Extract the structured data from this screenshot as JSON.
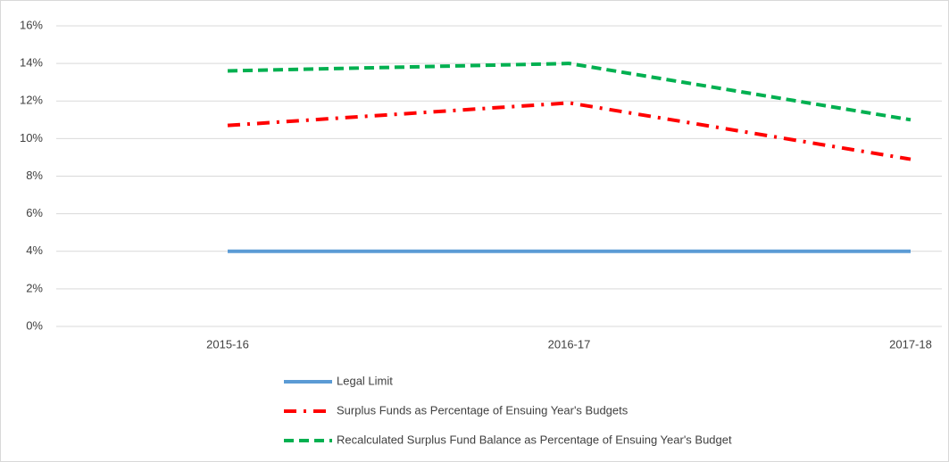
{
  "chart_data": {
    "type": "line",
    "categories": [
      "2015-16",
      "2016-17",
      "2017-18"
    ],
    "series": [
      {
        "name": "Legal Limit",
        "color": "#5b9bd5",
        "dash": "solid",
        "values": [
          4,
          4,
          4
        ]
      },
      {
        "name": "Surplus Funds as Percentage of Ensuing Year's Budgets",
        "color": "#ff0000",
        "dash": "dashdot",
        "values": [
          10.7,
          11.9,
          8.9
        ]
      },
      {
        "name": "Recalculated Surplus Fund Balance as Percentage of Ensuing Year's Budget",
        "color": "#00b050",
        "dash": "dashed",
        "values": [
          13.6,
          14.0,
          11.0
        ]
      }
    ],
    "ylim": [
      0,
      16
    ],
    "yticks": [
      {
        "value": 0,
        "label": "0%"
      },
      {
        "value": 2,
        "label": "2%"
      },
      {
        "value": 4,
        "label": "4%"
      },
      {
        "value": 6,
        "label": "6%"
      },
      {
        "value": 8,
        "label": "8%"
      },
      {
        "value": 10,
        "label": "10%"
      },
      {
        "value": 12,
        "label": "12%"
      },
      {
        "value": 14,
        "label": "14%"
      },
      {
        "value": 16,
        "label": "16%"
      }
    ],
    "grid": true,
    "legend": "bottom"
  }
}
